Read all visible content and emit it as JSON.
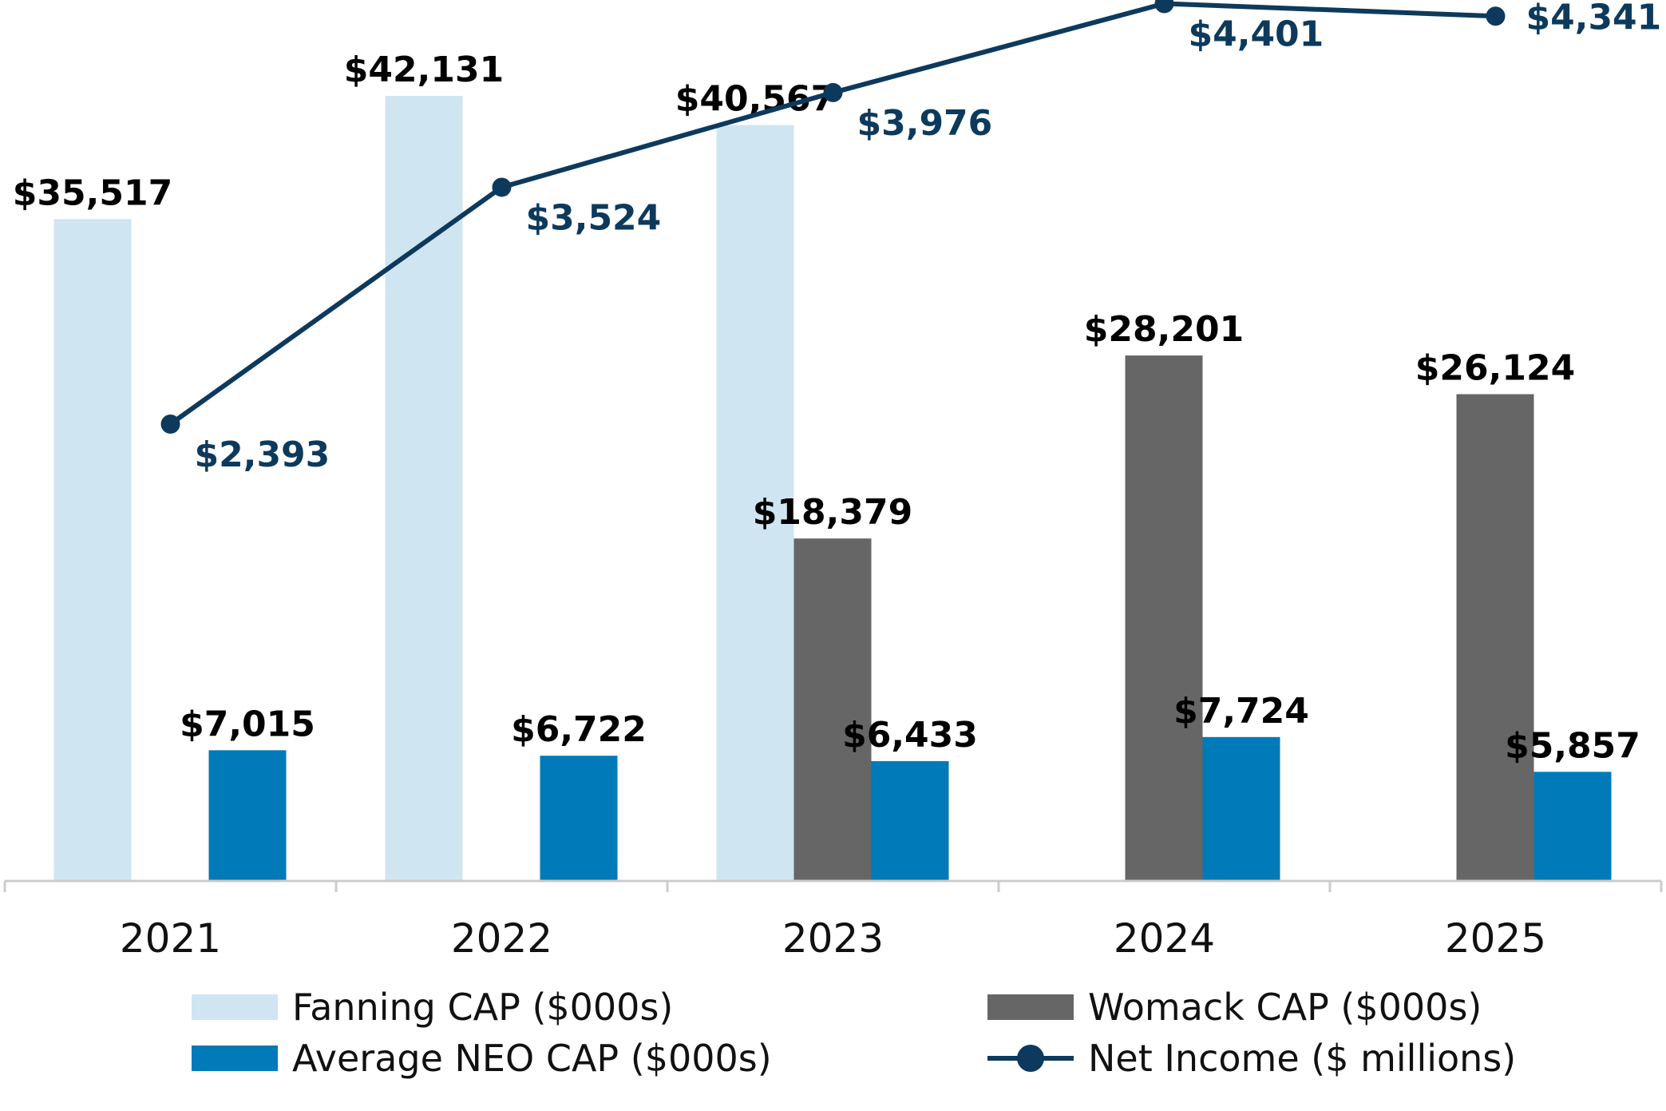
{
  "chart_data": {
    "type": "bar",
    "categories": [
      "2021",
      "2022",
      "2023",
      "2024",
      "2025"
    ],
    "series": [
      {
        "name": "Fanning CAP ($000s)",
        "type": "bar",
        "color": "#cfe5f2",
        "values": [
          35517,
          42131,
          40567,
          null,
          null
        ],
        "labels": [
          "$35,517",
          "$42,131",
          "$40,567",
          "",
          ""
        ]
      },
      {
        "name": "Womack CAP ($000s)",
        "type": "bar",
        "color": "#666666",
        "values": [
          null,
          null,
          18379,
          28201,
          26124
        ],
        "labels": [
          "",
          "",
          "$18,379",
          "$28,201",
          "$26,124"
        ]
      },
      {
        "name": "Average NEO CAP ($000s)",
        "type": "bar",
        "color": "#007ab8",
        "values": [
          7015,
          6722,
          6433,
          7724,
          5857
        ],
        "labels": [
          "$7,015",
          "$6,722",
          "$6,433",
          "$7,724",
          "$5,857"
        ]
      },
      {
        "name": "Net Income ($ millions)",
        "type": "line",
        "color": "#0d3a5c",
        "values": [
          2393,
          3524,
          3976,
          4401,
          4341
        ],
        "labels": [
          "$2,393",
          "$3,524",
          "$3,976",
          "$4,401",
          "$4,341"
        ]
      }
    ],
    "legend_position": "bottom",
    "grid": false
  },
  "legend": {
    "fanning": "Fanning CAP ($000s)",
    "womack": "Womack CAP ($000s)",
    "neo": "Average NEO CAP ($000s)",
    "net_income": "Net Income ($ millions)"
  }
}
